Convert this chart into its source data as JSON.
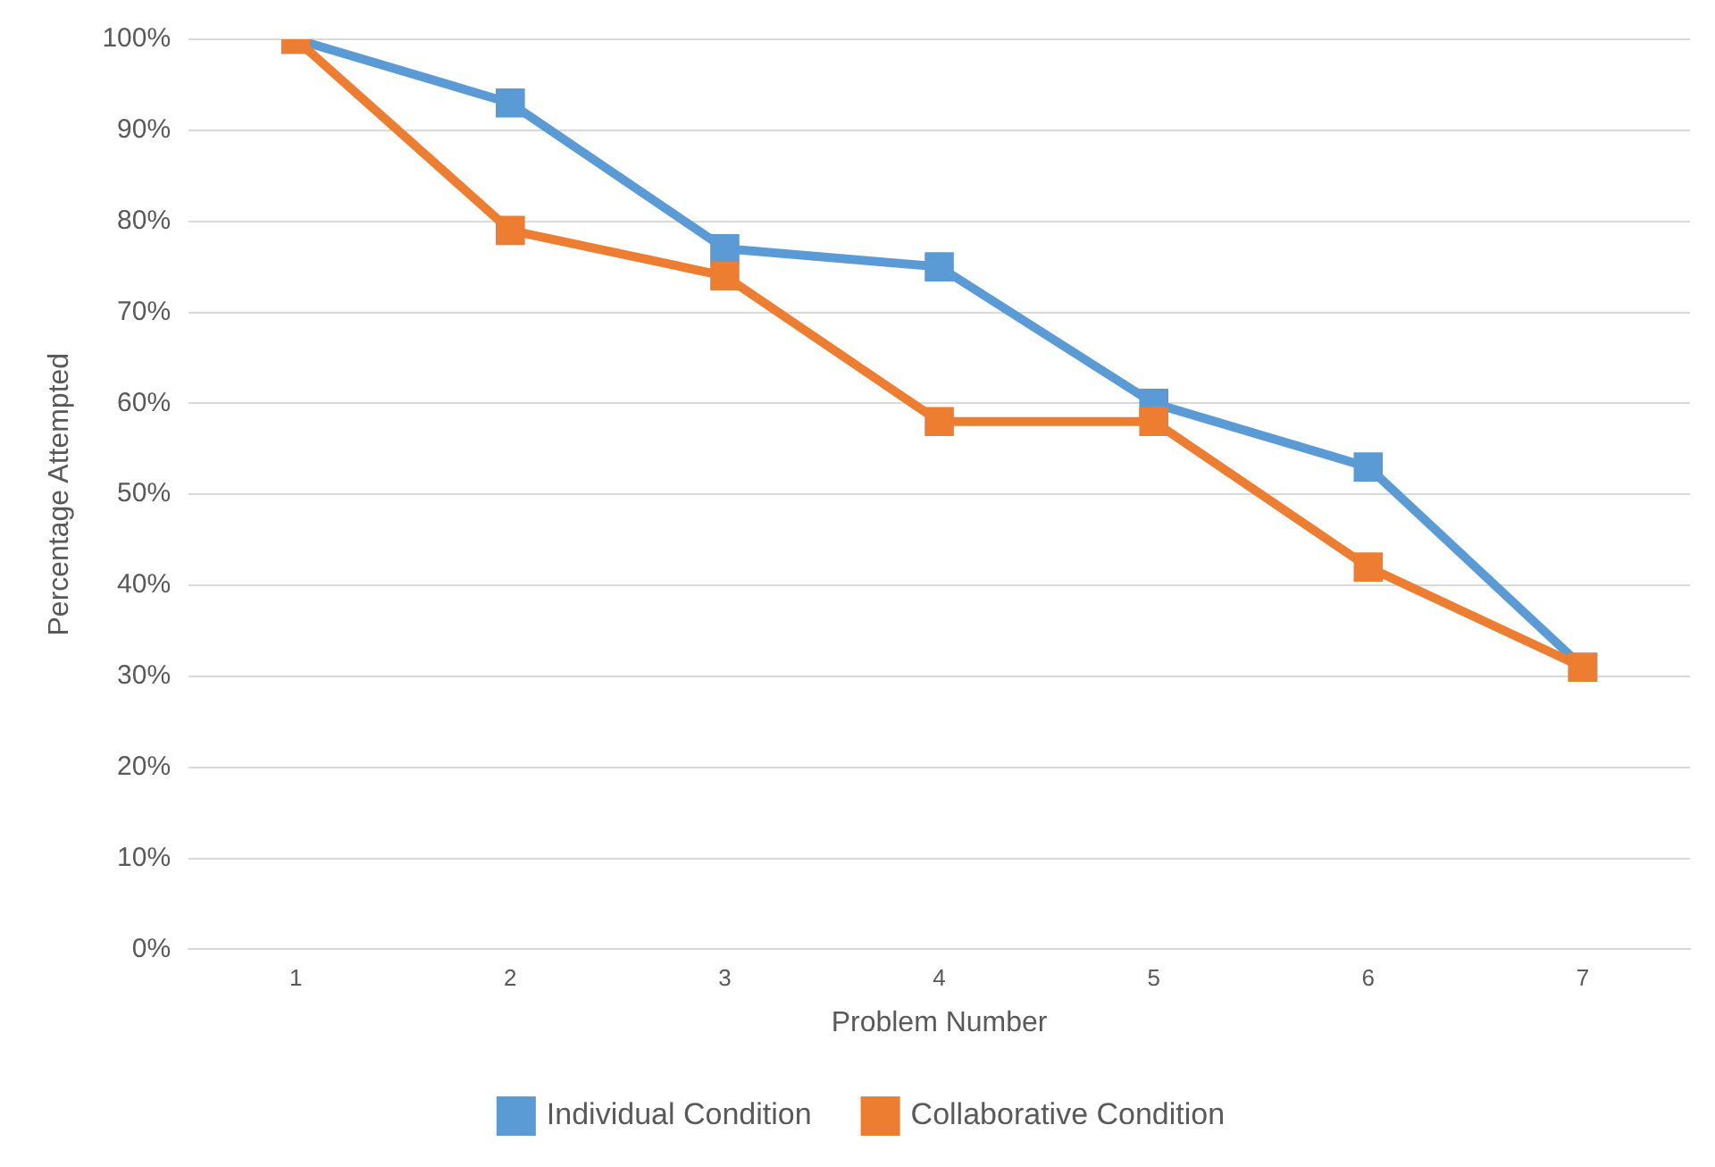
{
  "chart_data": {
    "type": "line",
    "xlabel": "Problem Number",
    "ylabel": "Percentage Attempted",
    "categories": [
      "1",
      "2",
      "3",
      "4",
      "5",
      "6",
      "7"
    ],
    "series": [
      {
        "name": "Individual Condition",
        "color": "#5b9bd5",
        "values": [
          100,
          93,
          77,
          75,
          60,
          53,
          31
        ]
      },
      {
        "name": "Collaborative Condition",
        "color": "#ed7d31",
        "values": [
          100,
          79,
          74,
          58,
          58,
          42,
          31
        ]
      }
    ],
    "ylim": [
      0,
      100
    ],
    "yticks": [
      {
        "value": 0,
        "label": "0%"
      },
      {
        "value": 10,
        "label": "10%"
      },
      {
        "value": 20,
        "label": "20%"
      },
      {
        "value": 30,
        "label": "30%"
      },
      {
        "value": 40,
        "label": "40%"
      },
      {
        "value": 50,
        "label": "50%"
      },
      {
        "value": 60,
        "label": "60%"
      },
      {
        "value": 70,
        "label": "70%"
      },
      {
        "value": 80,
        "label": "80%"
      },
      {
        "value": 90,
        "label": "90%"
      },
      {
        "value": 100,
        "label": "100%"
      }
    ],
    "grid": "y",
    "legend": "bottom",
    "marker": "square",
    "line_style": "solid"
  }
}
